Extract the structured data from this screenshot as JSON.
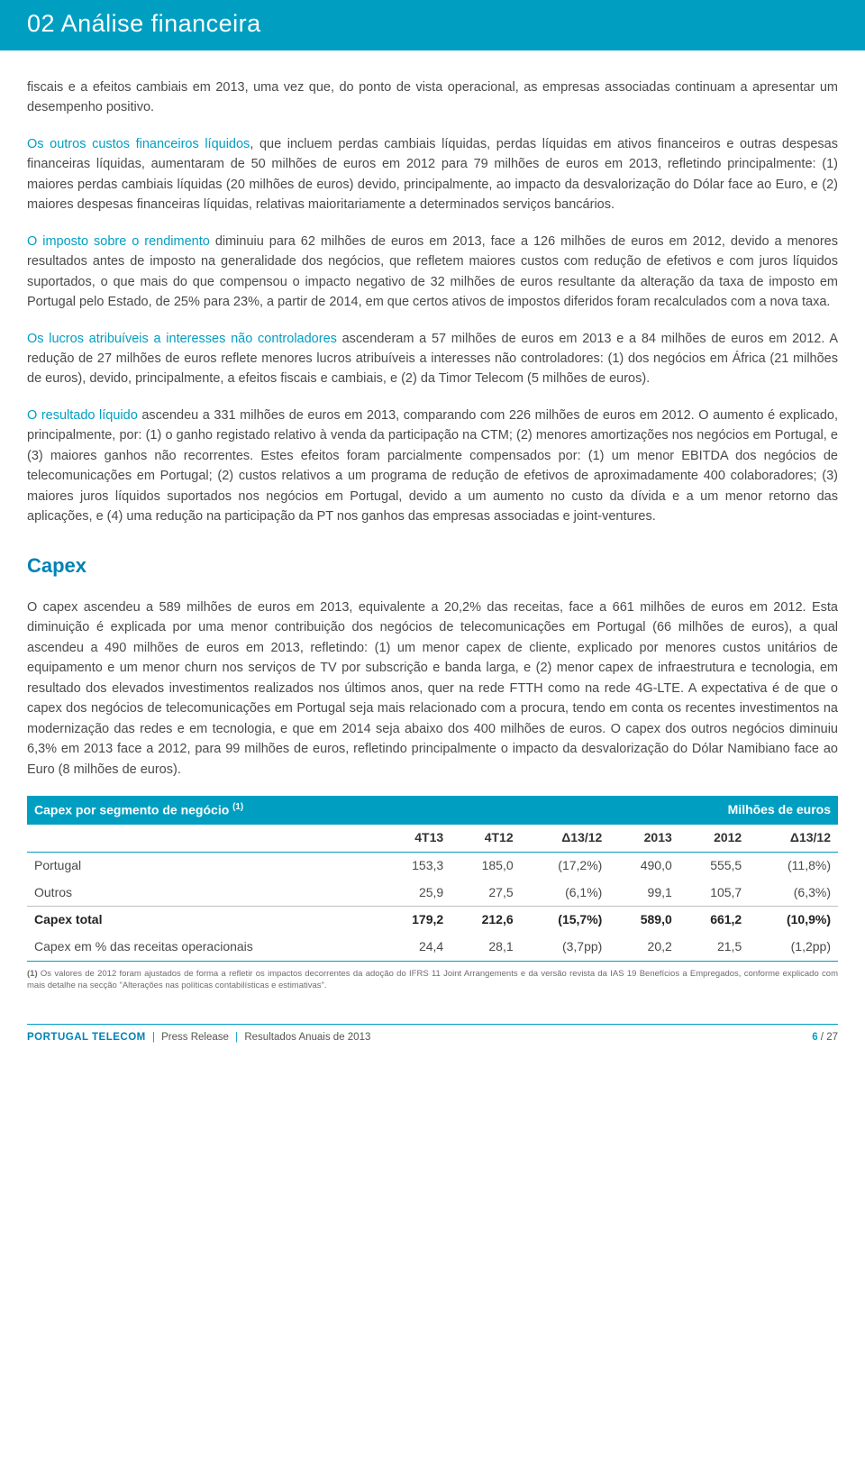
{
  "colors": {
    "teal": "#009fc2",
    "teal_dark": "#0082b5",
    "body_text": "#4a4a4a",
    "heading_text": "#333333",
    "footnote_text": "#6d6d6d",
    "rule_grey": "#bfbfbf",
    "white": "#ffffff"
  },
  "header": {
    "number": "02",
    "title": "Análise financeira"
  },
  "paragraphs": {
    "p1": "fiscais e a efeitos cambiais em 2013, uma vez que, do ponto de vista operacional, as empresas associadas continuam a apresentar um desempenho positivo.",
    "p2_lead": "Os outros custos financeiros líquidos",
    "p2_rest": ", que incluem perdas cambiais líquidas, perdas líquidas em ativos financeiros e outras despesas financeiras líquidas, aumentaram de 50 milhões de euros em 2012 para 79 milhões de euros em 2013, refletindo principalmente: (1) maiores perdas cambiais líquidas (20 milhões de euros) devido, principalmente, ao impacto da desvalorização do Dólar face ao Euro, e (2) maiores despesas financeiras líquidas, relativas maioritariamente a determinados serviços bancários.",
    "p3_lead": "O imposto sobre o rendimento",
    "p3_rest": " diminuiu para 62 milhões de euros em 2013, face a 126 milhões de euros em 2012, devido a menores resultados antes de imposto na generalidade dos negócios, que refletem maiores custos com redução de efetivos e com juros líquidos suportados, o que mais do que compensou o impacto negativo de 32 milhões de euros resultante da alteração da taxa de imposto em Portugal pelo Estado, de 25% para 23%, a partir de 2014, em que certos ativos de impostos diferidos foram recalculados com a nova taxa.",
    "p4_lead": "Os lucros atribuíveis a interesses não controladores",
    "p4_rest": " ascenderam a 57 milhões de euros em 2013 e a 84 milhões de euros em 2012. A redução de 27 milhões de euros reflete menores lucros atribuíveis a interesses não controladores: (1) dos negócios em África (21 milhões de euros), devido, principalmente, a efeitos fiscais e cambiais, e (2) da Timor Telecom (5 milhões de euros).",
    "p5_lead": "O resultado líquido",
    "p5_rest": " ascendeu a 331 milhões de euros em 2013, comparando com 226 milhões de euros em 2012. O aumento é explicado, principalmente, por: (1) o ganho registado relativo à venda da participação na CTM; (2) menores amortizações nos negócios em Portugal, e (3) maiores ganhos não recorrentes. Estes efeitos foram parcialmente compensados por: (1) um menor EBITDA dos negócios de telecomunicações em Portugal; (2) custos relativos a um programa de redução de efetivos de aproximadamente 400 colaboradores; (3) maiores juros líquidos suportados nos negócios em Portugal, devido a um aumento no custo da dívida e a um menor retorno das aplicações, e (4) uma redução na participação da PT nos ganhos das empresas associadas e joint-ventures.",
    "capex_title": "Capex",
    "p6": "O capex ascendeu a 589 milhões de euros em 2013, equivalente a 20,2% das receitas, face a 661 milhões de euros em 2012. Esta diminuição é explicada por uma menor contribuição dos negócios de telecomunicações em Portugal (66 milhões de euros), a qual ascendeu a 490 milhões de euros em 2013, refletindo: (1) um menor capex de cliente, explicado por menores custos unitários de equipamento e um menor churn nos serviços de TV por subscrição e banda larga, e (2) menor capex de infraestrutura e tecnologia, em resultado dos elevados investimentos realizados nos últimos anos, quer na rede FTTH como na rede 4G-LTE. A expectativa é de que o capex dos negócios de telecomunicações em Portugal seja mais relacionado com a procura, tendo em conta os recentes investimentos na modernização das redes e em tecnologia, e que em 2014 seja abaixo dos 400 milhões de euros. O capex dos outros negócios diminuiu 6,3% em 2013 face a 2012, para 99 milhões de euros, refletindo principalmente o impacto da desvalorização do Dólar Namibiano face ao Euro (8 milhões de euros)."
  },
  "table": {
    "title_left": "Capex por segmento de negócio ",
    "title_left_sup": "(1)",
    "title_right": "Milhões de euros",
    "columns": [
      "",
      "4T13",
      "4T12",
      "Δ13/12",
      "2013",
      "2012",
      "Δ13/12"
    ],
    "rows": [
      {
        "label": "Portugal",
        "cells": [
          "153,3",
          "185,0",
          "(17,2%)",
          "490,0",
          "555,5",
          "(11,8%)"
        ],
        "style": "normal"
      },
      {
        "label": "Outros",
        "cells": [
          "25,9",
          "27,5",
          "(6,1%)",
          "99,1",
          "105,7",
          "(6,3%)"
        ],
        "style": "normal"
      },
      {
        "label": "Capex total",
        "cells": [
          "179,2",
          "212,6",
          "(15,7%)",
          "589,0",
          "661,2",
          "(10,9%)"
        ],
        "style": "total"
      },
      {
        "label": "Capex em % das receitas operacionais",
        "cells": [
          "24,4",
          "28,1",
          "(3,7pp)",
          "20,2",
          "21,5",
          "(1,2pp)"
        ],
        "style": "last"
      }
    ],
    "footnote_lead": "(1)",
    "footnote": " Os valores de 2012 foram ajustados de forma a refletir os impactos decorrentes da adoção do IFRS 11 Joint Arrangements e da versão revista da IAS 19 Benefícios a Empregados, conforme explicado com mais detalhe na secção \"Alterações nas políticas contabilísticas e estimativas\"."
  },
  "footer": {
    "brand": "Portugal Telecom",
    "part1": "Press Release",
    "part2": "Resultados Anuais de 2013",
    "page_current": "6",
    "page_sep": " / ",
    "page_total": "27"
  }
}
